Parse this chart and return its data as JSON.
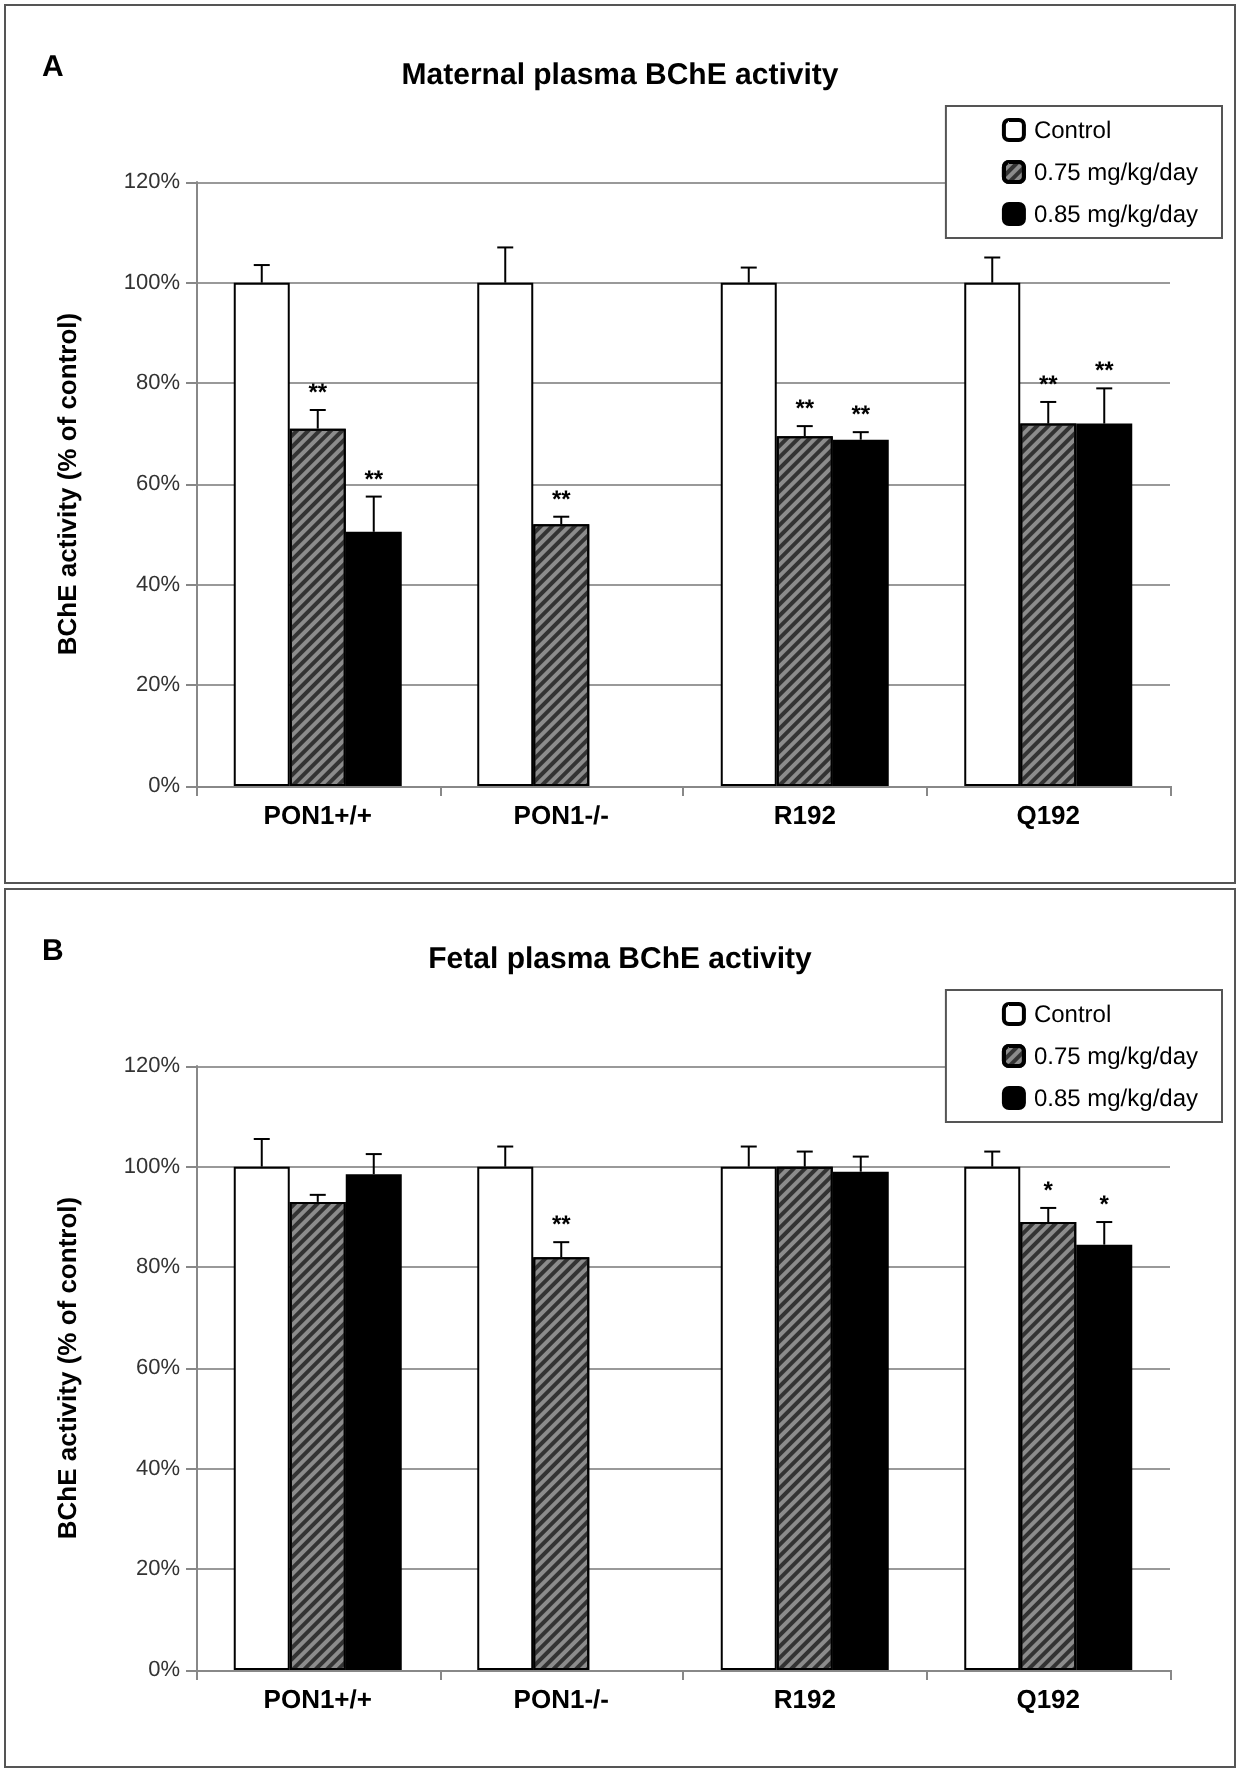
{
  "chart_data": [
    {
      "type": "bar",
      "title": "Maternal plasma BChE activity",
      "annotations": [
        "A"
      ],
      "ylabel": "BChE activity (% of control)",
      "categories": [
        "PON1+/+",
        "PON1-/-",
        "R192",
        "Q192"
      ],
      "series": [
        {
          "name": "Control",
          "color": "#ffffff",
          "values": [
            100,
            100,
            100,
            100
          ],
          "errors": [
            [
              100,
              103.5
            ],
            [
              100,
              107
            ],
            [
              100,
              103
            ],
            [
              100,
              105
            ]
          ]
        },
        {
          "name": "0.75 mg/kg/day",
          "color": "#8c8c8c",
          "values": [
            71,
            52,
            69.5,
            72
          ],
          "errors": [
            [
              71,
              74.7
            ],
            [
              52,
              53.5
            ],
            [
              69.5,
              71.5
            ],
            [
              72,
              76.3
            ]
          ],
          "value_labels": [
            "**",
            "**",
            "**",
            "**"
          ]
        },
        {
          "name": "0.85 mg/kg/day",
          "color": "#000000",
          "values": [
            50.5,
            null,
            68.8,
            72
          ],
          "errors": [
            [
              50.5,
              57.5
            ],
            null,
            [
              68.8,
              70.3
            ],
            [
              72,
              79
            ]
          ],
          "value_labels": [
            "**",
            null,
            "**",
            "**"
          ]
        }
      ],
      "ylim": [
        0,
        120
      ],
      "yticks": [
        {
          "value": 0,
          "label": "0%"
        },
        {
          "value": 20,
          "label": "20%"
        },
        {
          "value": 40,
          "label": "40%"
        },
        {
          "value": 60,
          "label": "60%"
        },
        {
          "value": 80,
          "label": "80%"
        },
        {
          "value": 100,
          "label": "100%"
        },
        {
          "value": 120,
          "label": "120%"
        }
      ],
      "grid": "y",
      "legend": "top right"
    },
    {
      "type": "bar",
      "title": "Fetal plasma BChE activity",
      "annotations": [
        "B"
      ],
      "ylabel": "BChE activity (% of control)",
      "categories": [
        "PON1+/+",
        "PON1-/-",
        "R192",
        "Q192"
      ],
      "series": [
        {
          "name": "Control",
          "color": "#ffffff",
          "values": [
            100,
            100,
            100,
            100
          ],
          "errors": [
            [
              100,
              105.5
            ],
            [
              100,
              104
            ],
            [
              100,
              104
            ],
            [
              100,
              103
            ]
          ]
        },
        {
          "name": "0.75 mg/kg/day",
          "color": "#8c8c8c",
          "values": [
            93,
            82,
            100,
            89
          ],
          "errors": [
            [
              93,
              94.4
            ],
            [
              82,
              85
            ],
            [
              100,
              103
            ],
            [
              89,
              91.8
            ]
          ],
          "value_labels": [
            null,
            "**",
            null,
            "*"
          ]
        },
        {
          "name": "0.85 mg/kg/day",
          "color": "#000000",
          "values": [
            98.5,
            null,
            99,
            84.5
          ],
          "errors": [
            [
              98.5,
              102.5
            ],
            null,
            [
              99,
              102
            ],
            [
              84.5,
              89
            ]
          ],
          "value_labels": [
            null,
            null,
            null,
            "*"
          ]
        }
      ],
      "ylim": [
        0,
        120
      ],
      "yticks": [
        {
          "value": 0,
          "label": "0%"
        },
        {
          "value": 20,
          "label": "20%"
        },
        {
          "value": 40,
          "label": "40%"
        },
        {
          "value": 60,
          "label": "60%"
        },
        {
          "value": 80,
          "label": "80%"
        },
        {
          "value": 100,
          "label": "100%"
        },
        {
          "value": 120,
          "label": "120%"
        }
      ],
      "grid": "y",
      "legend": "top right"
    }
  ]
}
